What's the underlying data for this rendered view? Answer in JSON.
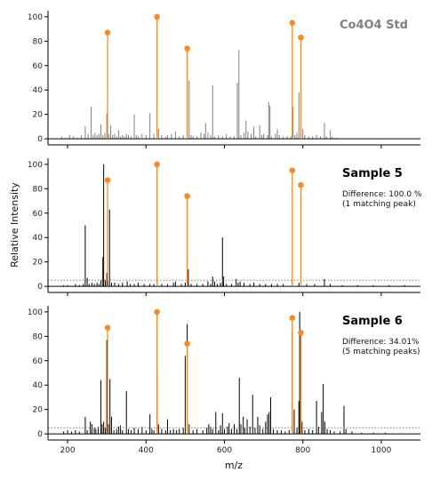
{
  "chart_data": {
    "type": "stem",
    "xlabel": "m/z",
    "ylabel": "Relative Intensity",
    "xlim": [
      150,
      1100
    ],
    "x_ticks": [
      200,
      400,
      600,
      800,
      1000
    ],
    "y_ticks": [
      0,
      20,
      40,
      60,
      80,
      100
    ],
    "ylim": [
      -5,
      105
    ],
    "grid": false,
    "colors": {
      "reference": "#f28c28",
      "std_spectrum": "#808080",
      "sample_spectrum": "#000000",
      "threshold": "#808080"
    },
    "reference_peaks": [
      {
        "mz": 302,
        "intensity": 87
      },
      {
        "mz": 428,
        "intensity": 100
      },
      {
        "mz": 505,
        "intensity": 74
      },
      {
        "mz": 773,
        "intensity": 95
      },
      {
        "mz": 795,
        "intensity": 83
      }
    ],
    "panels": [
      {
        "title": "Co4O4 Std",
        "title_color": "#808080",
        "annotation": "",
        "threshold": null,
        "spectrum_color": "#808080",
        "peaks": [
          [
            185,
            2
          ],
          [
            195,
            1
          ],
          [
            205,
            3
          ],
          [
            215,
            2
          ],
          [
            225,
            1
          ],
          [
            235,
            3
          ],
          [
            245,
            10
          ],
          [
            252,
            4
          ],
          [
            260,
            26
          ],
          [
            265,
            3
          ],
          [
            270,
            5
          ],
          [
            275,
            3
          ],
          [
            280,
            4
          ],
          [
            285,
            12
          ],
          [
            290,
            3
          ],
          [
            295,
            5
          ],
          [
            300,
            21
          ],
          [
            305,
            4
          ],
          [
            310,
            11
          ],
          [
            315,
            3
          ],
          [
            320,
            4
          ],
          [
            325,
            2
          ],
          [
            330,
            7
          ],
          [
            335,
            2
          ],
          [
            340,
            3
          ],
          [
            345,
            2
          ],
          [
            350,
            4
          ],
          [
            355,
            3
          ],
          [
            362,
            2
          ],
          [
            370,
            20
          ],
          [
            375,
            3
          ],
          [
            380,
            2
          ],
          [
            390,
            4
          ],
          [
            400,
            3
          ],
          [
            410,
            21
          ],
          [
            420,
            4
          ],
          [
            428,
            5
          ],
          [
            432,
            8
          ],
          [
            440,
            3
          ],
          [
            450,
            2
          ],
          [
            455,
            3
          ],
          [
            465,
            4
          ],
          [
            475,
            6
          ],
          [
            485,
            2
          ],
          [
            495,
            3
          ],
          [
            505,
            5
          ],
          [
            510,
            48
          ],
          [
            515,
            3
          ],
          [
            520,
            2
          ],
          [
            530,
            2
          ],
          [
            540,
            5
          ],
          [
            548,
            4
          ],
          [
            552,
            13
          ],
          [
            558,
            5
          ],
          [
            565,
            3
          ],
          [
            570,
            44
          ],
          [
            575,
            2
          ],
          [
            585,
            3
          ],
          [
            595,
            2
          ],
          [
            605,
            4
          ],
          [
            615,
            2
          ],
          [
            625,
            2
          ],
          [
            633,
            46
          ],
          [
            637,
            73
          ],
          [
            642,
            3
          ],
          [
            650,
            5
          ],
          [
            655,
            15
          ],
          [
            660,
            6
          ],
          [
            668,
            4
          ],
          [
            675,
            10
          ],
          [
            680,
            2
          ],
          [
            690,
            11
          ],
          [
            695,
            3
          ],
          [
            700,
            4
          ],
          [
            710,
            3
          ],
          [
            713,
            30
          ],
          [
            716,
            27
          ],
          [
            720,
            2
          ],
          [
            730,
            4
          ],
          [
            735,
            8
          ],
          [
            740,
            3
          ],
          [
            750,
            2
          ],
          [
            760,
            2
          ],
          [
            770,
            2
          ],
          [
            775,
            26
          ],
          [
            780,
            3
          ],
          [
            785,
            5
          ],
          [
            790,
            38
          ],
          [
            795,
            20
          ],
          [
            800,
            8
          ],
          [
            805,
            3
          ],
          [
            815,
            2
          ],
          [
            825,
            2
          ],
          [
            835,
            3
          ],
          [
            845,
            2
          ],
          [
            855,
            13
          ],
          [
            860,
            2
          ],
          [
            870,
            7
          ],
          [
            875,
            2
          ],
          [
            885,
            1
          ]
        ]
      },
      {
        "title": "Sample 5",
        "title_color": "#000000",
        "annotation": "Difference: 100.0 %\n(1 matching peak)",
        "threshold": 5,
        "spectrum_color": "#000000",
        "peaks": [
          [
            190,
            1
          ],
          [
            200,
            1
          ],
          [
            220,
            2
          ],
          [
            230,
            1
          ],
          [
            240,
            2
          ],
          [
            245,
            50
          ],
          [
            250,
            7
          ],
          [
            255,
            2
          ],
          [
            262,
            3
          ],
          [
            268,
            2
          ],
          [
            275,
            3
          ],
          [
            280,
            2
          ],
          [
            285,
            5
          ],
          [
            290,
            24
          ],
          [
            292,
            100
          ],
          [
            296,
            5
          ],
          [
            300,
            11
          ],
          [
            303,
            4
          ],
          [
            307,
            63
          ],
          [
            312,
            3
          ],
          [
            320,
            3
          ],
          [
            330,
            2
          ],
          [
            340,
            3
          ],
          [
            352,
            4
          ],
          [
            360,
            2
          ],
          [
            370,
            2
          ],
          [
            380,
            3
          ],
          [
            395,
            2
          ],
          [
            410,
            2
          ],
          [
            420,
            2
          ],
          [
            428,
            8
          ],
          [
            440,
            2
          ],
          [
            455,
            2
          ],
          [
            470,
            3
          ],
          [
            475,
            4
          ],
          [
            490,
            2
          ],
          [
            500,
            3
          ],
          [
            505,
            5
          ],
          [
            508,
            14
          ],
          [
            515,
            2
          ],
          [
            530,
            2
          ],
          [
            545,
            2
          ],
          [
            558,
            4
          ],
          [
            565,
            2
          ],
          [
            570,
            8
          ],
          [
            575,
            4
          ],
          [
            582,
            2
          ],
          [
            590,
            3
          ],
          [
            595,
            40
          ],
          [
            598,
            8
          ],
          [
            605,
            2
          ],
          [
            618,
            2
          ],
          [
            630,
            6
          ],
          [
            635,
            3
          ],
          [
            640,
            4
          ],
          [
            650,
            3
          ],
          [
            665,
            2
          ],
          [
            675,
            3
          ],
          [
            690,
            2
          ],
          [
            705,
            2
          ],
          [
            720,
            2
          ],
          [
            735,
            2
          ],
          [
            750,
            2
          ],
          [
            773,
            3
          ],
          [
            790,
            3
          ],
          [
            810,
            2
          ],
          [
            830,
            2
          ],
          [
            855,
            6
          ],
          [
            870,
            2
          ],
          [
            900,
            1
          ],
          [
            940,
            1
          ],
          [
            980,
            1
          ],
          [
            1020,
            1
          ],
          [
            1060,
            1
          ]
        ]
      },
      {
        "title": "Sample 6",
        "title_color": "#000000",
        "annotation": "Difference: 34.01%\n(5 matching peaks)",
        "threshold": 5,
        "spectrum_color": "#000000",
        "peaks": [
          [
            190,
            2
          ],
          [
            200,
            3
          ],
          [
            210,
            2
          ],
          [
            220,
            3
          ],
          [
            230,
            2
          ],
          [
            245,
            14
          ],
          [
            250,
            3
          ],
          [
            258,
            10
          ],
          [
            262,
            8
          ],
          [
            268,
            5
          ],
          [
            272,
            4
          ],
          [
            278,
            6
          ],
          [
            285,
            44
          ],
          [
            288,
            8
          ],
          [
            292,
            10
          ],
          [
            296,
            5
          ],
          [
            300,
            77
          ],
          [
            304,
            8
          ],
          [
            308,
            45
          ],
          [
            312,
            14
          ],
          [
            318,
            3
          ],
          [
            325,
            4
          ],
          [
            330,
            6
          ],
          [
            335,
            7
          ],
          [
            340,
            3
          ],
          [
            350,
            35
          ],
          [
            355,
            4
          ],
          [
            362,
            3
          ],
          [
            370,
            5
          ],
          [
            380,
            4
          ],
          [
            390,
            6
          ],
          [
            400,
            3
          ],
          [
            410,
            16
          ],
          [
            415,
            4
          ],
          [
            420,
            3
          ],
          [
            428,
            52
          ],
          [
            432,
            8
          ],
          [
            440,
            4
          ],
          [
            450,
            3
          ],
          [
            455,
            12
          ],
          [
            462,
            3
          ],
          [
            470,
            4
          ],
          [
            478,
            3
          ],
          [
            485,
            4
          ],
          [
            495,
            5
          ],
          [
            500,
            64
          ],
          [
            505,
            90
          ],
          [
            510,
            8
          ],
          [
            520,
            3
          ],
          [
            530,
            4
          ],
          [
            545,
            3
          ],
          [
            555,
            5
          ],
          [
            560,
            8
          ],
          [
            565,
            6
          ],
          [
            570,
            4
          ],
          [
            578,
            18
          ],
          [
            585,
            3
          ],
          [
            590,
            7
          ],
          [
            595,
            17
          ],
          [
            600,
            4
          ],
          [
            608,
            6
          ],
          [
            612,
            9
          ],
          [
            618,
            4
          ],
          [
            625,
            8
          ],
          [
            632,
            4
          ],
          [
            638,
            46
          ],
          [
            642,
            8
          ],
          [
            648,
            14
          ],
          [
            652,
            5
          ],
          [
            658,
            12
          ],
          [
            665,
            6
          ],
          [
            672,
            32
          ],
          [
            678,
            5
          ],
          [
            685,
            14
          ],
          [
            690,
            7
          ],
          [
            698,
            4
          ],
          [
            705,
            10
          ],
          [
            710,
            16
          ],
          [
            714,
            18
          ],
          [
            718,
            30
          ],
          [
            725,
            4
          ],
          [
            735,
            3
          ],
          [
            745,
            3
          ],
          [
            755,
            2
          ],
          [
            765,
            3
          ],
          [
            773,
            84
          ],
          [
            778,
            20
          ],
          [
            785,
            5
          ],
          [
            790,
            27
          ],
          [
            792,
            100
          ],
          [
            798,
            10
          ],
          [
            805,
            3
          ],
          [
            815,
            4
          ],
          [
            825,
            3
          ],
          [
            835,
            27
          ],
          [
            840,
            6
          ],
          [
            848,
            18
          ],
          [
            852,
            41
          ],
          [
            856,
            10
          ],
          [
            862,
            4
          ],
          [
            870,
            3
          ],
          [
            880,
            2
          ],
          [
            895,
            2
          ],
          [
            905,
            23
          ],
          [
            910,
            4
          ],
          [
            925,
            2
          ],
          [
            950,
            1
          ],
          [
            980,
            1
          ],
          [
            1010,
            1
          ]
        ]
      }
    ]
  }
}
